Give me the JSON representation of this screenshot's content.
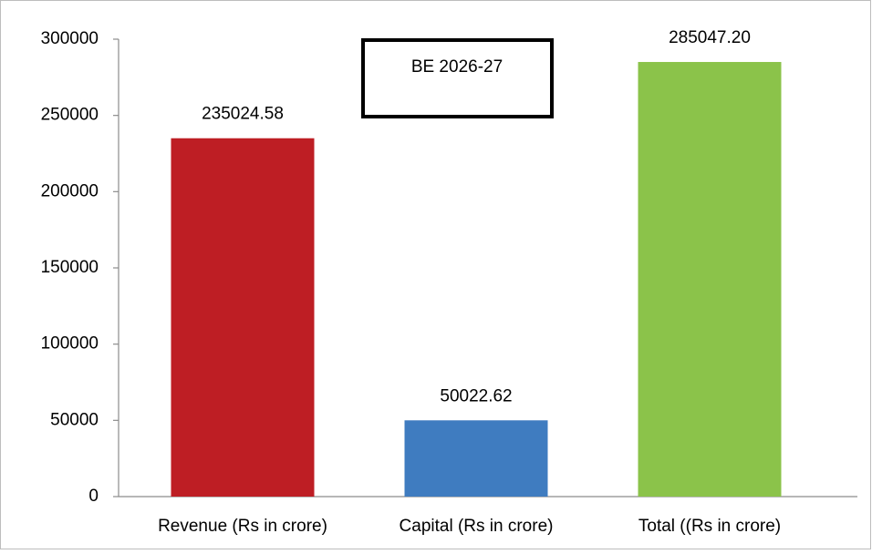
{
  "chart_data": {
    "type": "bar",
    "annotation": "BE 2026-27",
    "categories": [
      "Revenue (Rs in crore)",
      "Capital (Rs in crore)",
      "Total ((Rs in crore)"
    ],
    "values": [
      235024.58,
      50022.62,
      285047.2
    ],
    "value_labels": [
      "235024.58",
      "50022.62",
      "285047.20"
    ],
    "colors": [
      "#be1e24",
      "#3f7cc0",
      "#8bc34a"
    ],
    "ylim": [
      0,
      300000
    ],
    "yticks": [
      0,
      50000,
      100000,
      150000,
      200000,
      250000,
      300000
    ],
    "grid": false
  }
}
